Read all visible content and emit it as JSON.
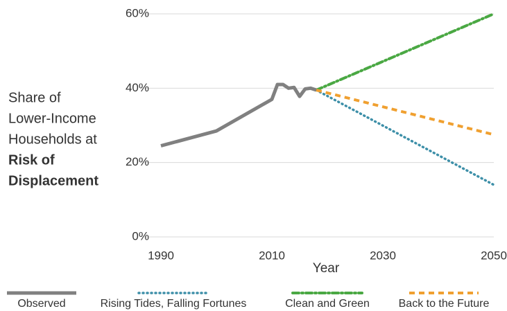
{
  "chart_data": {
    "type": "line",
    "ylabel_lines": [
      {
        "text": "Share of",
        "bold": false
      },
      {
        "text": "Lower-Income",
        "bold": false
      },
      {
        "text": "Households at",
        "bold": false
      },
      {
        "text": "Risk of",
        "bold": true
      },
      {
        "text": "Displacement",
        "bold": true
      }
    ],
    "xlabel": "Year",
    "xlim": [
      1987,
      2051
    ],
    "xticks": [
      1990,
      2010,
      2030,
      2050
    ],
    "ylim": [
      0,
      60
    ],
    "yticks": [
      {
        "value": 0,
        "label": "0%"
      },
      {
        "value": 20,
        "label": "20%"
      },
      {
        "value": 40,
        "label": "40%"
      },
      {
        "value": 60,
        "label": "60%"
      }
    ],
    "grid": true,
    "legend": "bottom",
    "series": [
      {
        "name": "Observed",
        "color": "#808080",
        "style": "solid",
        "x": [
          1990,
          2000,
          2010,
          2011,
          2012,
          2013,
          2014,
          2015,
          2016,
          2017,
          2018
        ],
        "values": [
          24.5,
          28.5,
          37,
          41,
          41,
          40,
          40.2,
          37.8,
          39.8,
          40,
          39.5
        ]
      },
      {
        "name": "Rising Tides, Falling Fortunes",
        "color": "#3d8fa8",
        "style": "dotted",
        "x": [
          2018,
          2050
        ],
        "values": [
          39.5,
          14
        ]
      },
      {
        "name": "Clean and Green",
        "color": "#4aa843",
        "style": "dashdot",
        "x": [
          2018,
          2050
        ],
        "values": [
          39.5,
          60
        ]
      },
      {
        "name": "Back to the Future",
        "color": "#f0a030",
        "style": "dashed",
        "x": [
          2018,
          2050
        ],
        "values": [
          39.5,
          27.5
        ]
      }
    ]
  }
}
